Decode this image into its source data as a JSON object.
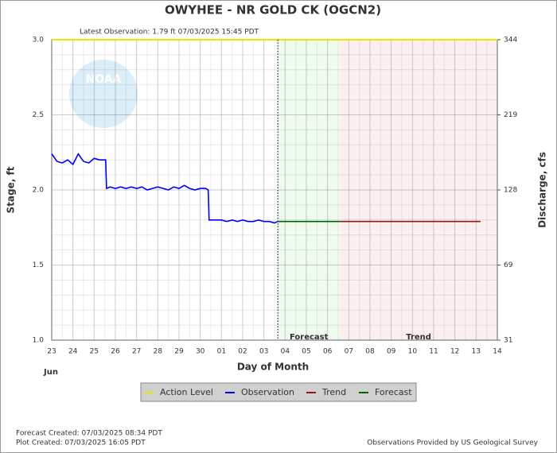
{
  "chart_data": {
    "type": "hydrograph",
    "title": "OWYHEE - NR GOLD CK  (OGCN2)",
    "subtitle": "Latest Observation: 1.79 ft 07/03/2025 15:45 PDT",
    "ylabel": "Stage, ft",
    "y2label": "Discharge, cfs",
    "xlabel": "Day of Month",
    "month_label": "Jun",
    "logo_text": "NOAA",
    "footer_left": [
      "Forecast Created: 07/03/2025 08:34 PDT",
      "Plot Created: 07/03/2025 16:05 PDT"
    ],
    "footer_right": "Observations Provided by US Geological Survey",
    "grid": true,
    "xlim": [
      "2025-06-23T00:00",
      "2025-07-14T00:00"
    ],
    "ylim": [
      1.0,
      3.0
    ],
    "yticks": [
      {
        "value": 1.0,
        "label": "1.0"
      },
      {
        "value": 1.5,
        "label": "1.5"
      },
      {
        "value": 2.0,
        "label": "2.0"
      },
      {
        "value": 2.5,
        "label": "2.5"
      },
      {
        "value": 3.0,
        "label": "3.0"
      }
    ],
    "y2ticks": [
      31,
      69,
      128,
      219,
      344
    ],
    "xticks": [
      {
        "value": "2025-06-23T00:00",
        "label": "23"
      },
      {
        "value": "2025-06-24T00:00",
        "label": "24"
      },
      {
        "value": "2025-06-25T00:00",
        "label": "25"
      },
      {
        "value": "2025-06-26T00:00",
        "label": "26"
      },
      {
        "value": "2025-06-27T00:00",
        "label": "27"
      },
      {
        "value": "2025-06-28T00:00",
        "label": "28"
      },
      {
        "value": "2025-06-29T00:00",
        "label": "29"
      },
      {
        "value": "2025-06-30T00:00",
        "label": "30"
      },
      {
        "value": "2025-07-01T00:00",
        "label": "01"
      },
      {
        "value": "2025-07-02T00:00",
        "label": "02"
      },
      {
        "value": "2025-07-03T00:00",
        "label": "03"
      },
      {
        "value": "2025-07-04T00:00",
        "label": "04"
      },
      {
        "value": "2025-07-05T00:00",
        "label": "05"
      },
      {
        "value": "2025-07-06T00:00",
        "label": "06"
      },
      {
        "value": "2025-07-07T00:00",
        "label": "07"
      },
      {
        "value": "2025-07-08T00:00",
        "label": "08"
      },
      {
        "value": "2025-07-09T00:00",
        "label": "09"
      },
      {
        "value": "2025-07-10T00:00",
        "label": "10"
      },
      {
        "value": "2025-07-11T00:00",
        "label": "11"
      },
      {
        "value": "2025-07-12T00:00",
        "label": "12"
      },
      {
        "value": "2025-07-13T00:00",
        "label": "13"
      },
      {
        "value": "2025-07-14T00:00",
        "label": "14"
      }
    ],
    "regions": [
      {
        "label": "Forecast",
        "start": "2025-07-03T15:45",
        "end": "2025-07-06T14:00",
        "color": "#eefbee"
      },
      {
        "label": "Trend",
        "start": "2025-07-06T14:00",
        "end": "2025-07-14T00:00",
        "color": "#fcefef"
      }
    ],
    "action_level": {
      "name": "Action Level",
      "color": "#e8e800",
      "value": 3.0
    },
    "series": [
      {
        "name": "Observation",
        "color": "#0000ff",
        "x": [
          "2025-06-23T00:00",
          "2025-06-23T06:00",
          "2025-06-23T12:00",
          "2025-06-23T18:00",
          "2025-06-24T00:00",
          "2025-06-24T06:00",
          "2025-06-24T12:00",
          "2025-06-24T18:00",
          "2025-06-25T00:00",
          "2025-06-25T06:00",
          "2025-06-25T13:00",
          "2025-06-25T14:00",
          "2025-06-25T18:00",
          "2025-06-26T00:00",
          "2025-06-26T06:00",
          "2025-06-26T12:00",
          "2025-06-26T18:00",
          "2025-06-27T00:00",
          "2025-06-27T06:00",
          "2025-06-27T12:00",
          "2025-06-27T18:00",
          "2025-06-28T00:00",
          "2025-06-28T06:00",
          "2025-06-28T12:00",
          "2025-06-28T18:00",
          "2025-06-29T00:00",
          "2025-06-29T06:00",
          "2025-06-29T12:00",
          "2025-06-29T18:00",
          "2025-06-30T00:00",
          "2025-06-30T06:00",
          "2025-06-30T09:00",
          "2025-06-30T10:00",
          "2025-06-30T18:00",
          "2025-07-01T00:00",
          "2025-07-01T06:00",
          "2025-07-01T12:00",
          "2025-07-01T18:00",
          "2025-07-02T00:00",
          "2025-07-02T06:00",
          "2025-07-02T12:00",
          "2025-07-02T18:00",
          "2025-07-03T00:00",
          "2025-07-03T06:00",
          "2025-07-03T12:00",
          "2025-07-03T15:45"
        ],
        "values": [
          2.24,
          2.19,
          2.18,
          2.2,
          2.17,
          2.24,
          2.19,
          2.18,
          2.21,
          2.2,
          2.2,
          2.01,
          2.02,
          2.01,
          2.02,
          2.01,
          2.02,
          2.01,
          2.02,
          2.0,
          2.01,
          2.02,
          2.01,
          2.0,
          2.02,
          2.01,
          2.03,
          2.01,
          2.0,
          2.01,
          2.01,
          2.0,
          1.8,
          1.8,
          1.8,
          1.79,
          1.8,
          1.79,
          1.8,
          1.79,
          1.79,
          1.8,
          1.79,
          1.79,
          1.78,
          1.79
        ]
      },
      {
        "name": "Trend",
        "color": "#8b1a1a",
        "x": [
          "2025-07-06T14:00",
          "2025-07-13T05:00"
        ],
        "values": [
          1.79,
          1.79
        ]
      },
      {
        "name": "Forecast",
        "color": "#006400",
        "x": [
          "2025-07-03T15:45",
          "2025-07-06T14:00"
        ],
        "values": [
          1.79,
          1.79
        ]
      }
    ]
  }
}
